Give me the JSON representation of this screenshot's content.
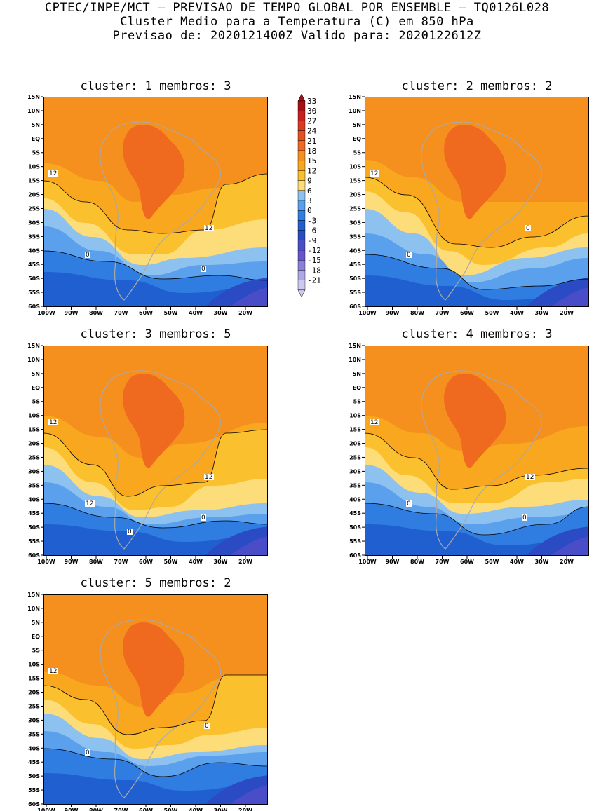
{
  "header": {
    "line1": "CPTEC/INPE/MCT — PREVISAO DE TEMPO GLOBAL POR ENSEMBLE — TQ0126L028",
    "line2": "Cluster Medio para a Temperatura (C) em 850 hPa",
    "line3": "Previsao de: 2020121400Z   Valido para: 2020122612Z"
  },
  "axes": {
    "lat_labels": [
      "15N",
      "10N",
      "5N",
      "EQ",
      "5S",
      "10S",
      "15S",
      "20S",
      "25S",
      "30S",
      "35S",
      "40S",
      "45S",
      "50S",
      "55S",
      "60S"
    ],
    "lon_labels": [
      "100W",
      "90W",
      "80W",
      "70W",
      "60W",
      "50W",
      "40W",
      "30W",
      "20W"
    ]
  },
  "colorbar": {
    "levels": [
      "33",
      "30",
      "27",
      "24",
      "21",
      "18",
      "15",
      "12",
      "9",
      "6",
      "3",
      "0",
      "-3",
      "-6",
      "-9",
      "-12",
      "-15",
      "-18",
      "-21"
    ],
    "colors": [
      "#a50f15",
      "#c8201e",
      "#d93a22",
      "#e6501e",
      "#ef6a1e",
      "#f5901e",
      "#f9a71e",
      "#fbc02d",
      "#fddc7a",
      "#8cc1f0",
      "#5aa0ec",
      "#2f7de1",
      "#1f5fd0",
      "#2b4bc4",
      "#4a4dc8",
      "#6655cf",
      "#8a7fdc",
      "#ada8e6",
      "#cdc9ef"
    ]
  },
  "clusters": [
    {
      "title": "cluster: 1  membros: 3",
      "contour_labels": [
        "12",
        "12",
        "0",
        "0"
      ]
    },
    {
      "title": "cluster: 2  membros: 2",
      "contour_labels": [
        "12",
        "0",
        "0"
      ]
    },
    {
      "title": "cluster: 3  membros: 5",
      "contour_labels": [
        "12",
        "12",
        "12",
        "0",
        "0"
      ]
    },
    {
      "title": "cluster: 4  membros: 3",
      "contour_labels": [
        "12",
        "12",
        "0",
        "0"
      ]
    },
    {
      "title": "cluster: 5  membros: 2",
      "contour_labels": [
        "12",
        "0",
        "0"
      ]
    }
  ]
}
